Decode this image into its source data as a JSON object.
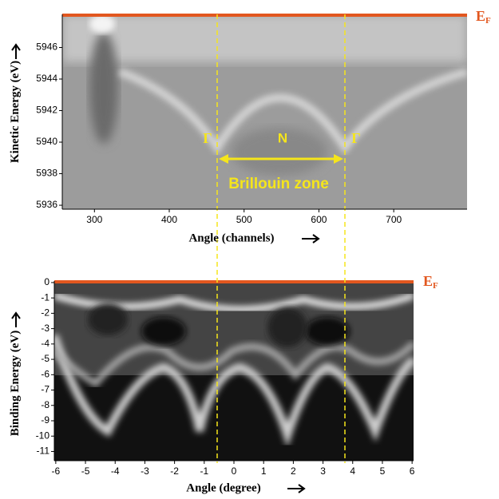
{
  "top_panel": {
    "y_label": "Kinetic Energy (eV)",
    "x_label": "Angle (channels)",
    "xlim": [
      257,
      798
    ],
    "ylim": [
      5935.75,
      5948.1
    ],
    "xticks": [
      300,
      400,
      500,
      600,
      700
    ],
    "yticks": [
      5936,
      5938,
      5940,
      5942,
      5944,
      5946
    ]
  },
  "bottom_panel": {
    "y_label": "Binding Energy (eV)",
    "x_label": "Angle (degree)",
    "xlim": [
      -6.05,
      6.05
    ],
    "ylim": [
      -11.6,
      0.1
    ],
    "xticks": [
      -6,
      -5,
      -4,
      -3,
      -2,
      -1,
      0,
      1,
      2,
      3,
      4,
      5,
      6
    ],
    "yticks": [
      0,
      -1,
      -2,
      -3,
      -4,
      -5,
      -6,
      -7,
      -8,
      -9,
      -10,
      -11
    ]
  },
  "fermi_label": {
    "main": "E",
    "sub": "F"
  },
  "annotations": {
    "gamma_left": "Γ",
    "n_point": "N",
    "gamma_right": "Γ",
    "zone": "Brillouin zone"
  }
}
